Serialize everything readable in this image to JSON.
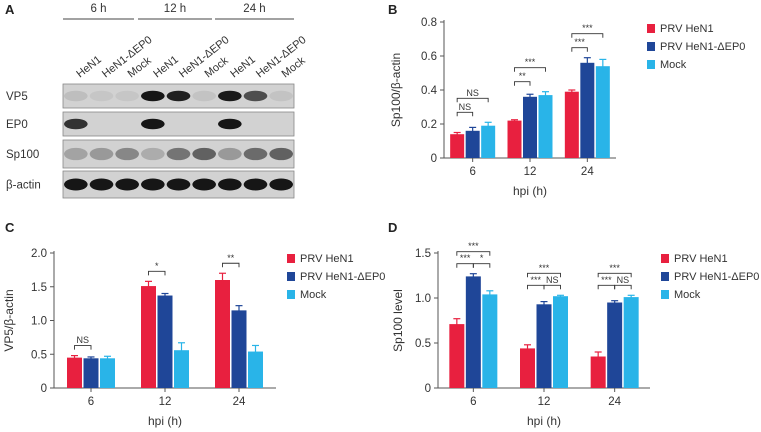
{
  "colors": {
    "prv_hen1": "#e8203f",
    "prv_hen1_dep0": "#1f4698",
    "mock": "#29b4e8",
    "axis": "#555555",
    "blot_bg": "#d2d2d2",
    "band": "#161616"
  },
  "panel_a": {
    "letter": "A",
    "time_points": [
      "6 h",
      "12 h",
      "24 h"
    ],
    "lanes": [
      "HeN1",
      "HeN1-ΔEP0",
      "Mock",
      "HeN1",
      "HeN1-ΔEP0",
      "Mock",
      "HeN1",
      "HeN1-ΔEP0",
      "Mock"
    ],
    "blots": [
      {
        "label": "VP5",
        "band_intensity": [
          0.1,
          0.06,
          0.06,
          1.0,
          0.95,
          0.08,
          0.98,
          0.7,
          0.08
        ]
      },
      {
        "label": "EP0",
        "band_intensity": [
          0.85,
          0.0,
          0.0,
          1.0,
          0.0,
          0.0,
          1.0,
          0.0,
          0.0
        ]
      },
      {
        "label": "Sp100",
        "band_intensity": [
          0.25,
          0.3,
          0.4,
          0.2,
          0.5,
          0.6,
          0.3,
          0.55,
          0.6
        ]
      },
      {
        "label": "β-actin",
        "band_intensity": [
          1.0,
          1.0,
          1.0,
          1.0,
          1.0,
          1.0,
          1.0,
          1.0,
          1.0
        ]
      }
    ]
  },
  "chart_data": [
    {
      "id": "B",
      "type": "bar",
      "categories": [
        "6",
        "12",
        "24"
      ],
      "series": [
        {
          "name": "PRV HeN1",
          "values": [
            0.14,
            0.22,
            0.39
          ],
          "errors": [
            0.01,
            0.005,
            0.01
          ]
        },
        {
          "name": "PRV HeN1-ΔEP0",
          "values": [
            0.16,
            0.36,
            0.56
          ],
          "errors": [
            0.02,
            0.015,
            0.03
          ]
        },
        {
          "name": "Mock",
          "values": [
            0.19,
            0.37,
            0.54
          ],
          "errors": [
            0.02,
            0.02,
            0.04
          ]
        }
      ],
      "xlabel": "hpi (h)",
      "ylabel": "Sp100/β-actin",
      "ylim": [
        0,
        0.8
      ],
      "yticks": [
        "0",
        "0.2",
        "0.4",
        "0.6",
        "0.8"
      ],
      "legend": "top-right",
      "significance": [
        {
          "group": 0,
          "from": 0,
          "to": 1,
          "label": "NS",
          "level": 0
        },
        {
          "group": 0,
          "from": 0,
          "to": 2,
          "label": "NS",
          "level": 1
        },
        {
          "group": 1,
          "from": 0,
          "to": 1,
          "label": "**",
          "level": 0
        },
        {
          "group": 1,
          "from": 0,
          "to": 2,
          "label": "***",
          "level": 1
        },
        {
          "group": 2,
          "from": 0,
          "to": 1,
          "label": "***",
          "level": 0
        },
        {
          "group": 2,
          "from": 0,
          "to": 2,
          "label": "***",
          "level": 1
        }
      ]
    },
    {
      "id": "C",
      "type": "bar",
      "categories": [
        "6",
        "12",
        "24"
      ],
      "series": [
        {
          "name": "PRV HeN1",
          "values": [
            0.45,
            1.51,
            1.6
          ],
          "errors": [
            0.03,
            0.07,
            0.1
          ]
        },
        {
          "name": "PRV HeN1-ΔEP0",
          "values": [
            0.44,
            1.37,
            1.15
          ],
          "errors": [
            0.02,
            0.03,
            0.07
          ]
        },
        {
          "name": "Mock",
          "values": [
            0.44,
            0.56,
            0.54
          ],
          "errors": [
            0.03,
            0.11,
            0.09
          ]
        }
      ],
      "xlabel": "hpi (h)",
      "ylabel": "VP5/β-actin",
      "ylim": [
        0,
        2.0
      ],
      "yticks": [
        "0",
        "0.5",
        "1.0",
        "1.5",
        "2.0"
      ],
      "legend": "top-right",
      "significance": [
        {
          "group": 0,
          "from": 0,
          "to": 1,
          "label": "NS",
          "level": 0
        },
        {
          "group": 1,
          "from": 0,
          "to": 1,
          "label": "*",
          "level": 0
        },
        {
          "group": 2,
          "from": 0,
          "to": 1,
          "label": "**",
          "level": 0
        }
      ]
    },
    {
      "id": "D",
      "type": "bar",
      "categories": [
        "6",
        "12",
        "24"
      ],
      "series": [
        {
          "name": "PRV HeN1",
          "values": [
            0.71,
            0.44,
            0.35
          ],
          "errors": [
            0.06,
            0.04,
            0.05
          ]
        },
        {
          "name": "PRV HeN1-ΔEP0",
          "values": [
            1.24,
            0.93,
            0.95
          ],
          "errors": [
            0.03,
            0.03,
            0.02
          ]
        },
        {
          "name": "Mock",
          "values": [
            1.04,
            1.02,
            1.01
          ],
          "errors": [
            0.04,
            0.01,
            0.02
          ]
        }
      ],
      "xlabel": "hpi (h)",
      "ylabel": "Sp100 level",
      "ylim": [
        0,
        1.5
      ],
      "yticks": [
        "0",
        "0.5",
        "1.0",
        "1.5"
      ],
      "legend": "top-right",
      "significance": [
        {
          "group": 0,
          "from": 0,
          "to": 1,
          "label": "***",
          "level": 0
        },
        {
          "group": 0,
          "from": 1,
          "to": 2,
          "label": "*",
          "level": 0
        },
        {
          "group": 0,
          "from": 0,
          "to": 2,
          "label": "***",
          "level": 1
        },
        {
          "group": 1,
          "from": 0,
          "to": 1,
          "label": "***",
          "level": 0
        },
        {
          "group": 1,
          "from": 1,
          "to": 2,
          "label": "NS",
          "level": 0
        },
        {
          "group": 1,
          "from": 0,
          "to": 2,
          "label": "***",
          "level": 1
        },
        {
          "group": 2,
          "from": 0,
          "to": 1,
          "label": "***",
          "level": 0
        },
        {
          "group": 2,
          "from": 1,
          "to": 2,
          "label": "NS",
          "level": 0
        },
        {
          "group": 2,
          "from": 0,
          "to": 2,
          "label": "***",
          "level": 1
        }
      ]
    }
  ]
}
